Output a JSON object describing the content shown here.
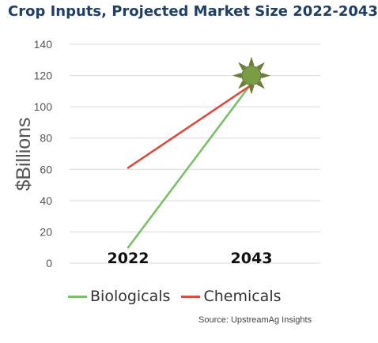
{
  "title": "Crop Inputs, Projected Market Size 2022-2043",
  "source": "Source: UpstreamAg Insights",
  "colors": {
    "biologicals": "#7cbf6b",
    "chemicals": "#dc4b3e",
    "sun_fill": "#7c9b45",
    "sun_ray": "#6b7d3a",
    "title": "#1f3f66",
    "grid": "#d9d9d9"
  },
  "chart_data": {
    "type": "line",
    "title": "Crop Inputs, Projected Market Size 2022-2043",
    "xlabel": "",
    "ylabel": "$Billions",
    "categories": [
      "2022",
      "2043"
    ],
    "ylim": [
      0,
      140
    ],
    "yticks": [
      0,
      20,
      40,
      60,
      80,
      100,
      120,
      140
    ],
    "grid": true,
    "legend_position": "bottom",
    "series": [
      {
        "name": "Biologicals",
        "values": [
          10,
          115
        ],
        "color": "#7cbf6b"
      },
      {
        "name": "Chemicals",
        "values": [
          61,
          114
        ],
        "color": "#dc4b3e"
      }
    ],
    "annotations": [
      {
        "type": "sun-icon",
        "at_category": "2043",
        "y": 120
      }
    ]
  }
}
